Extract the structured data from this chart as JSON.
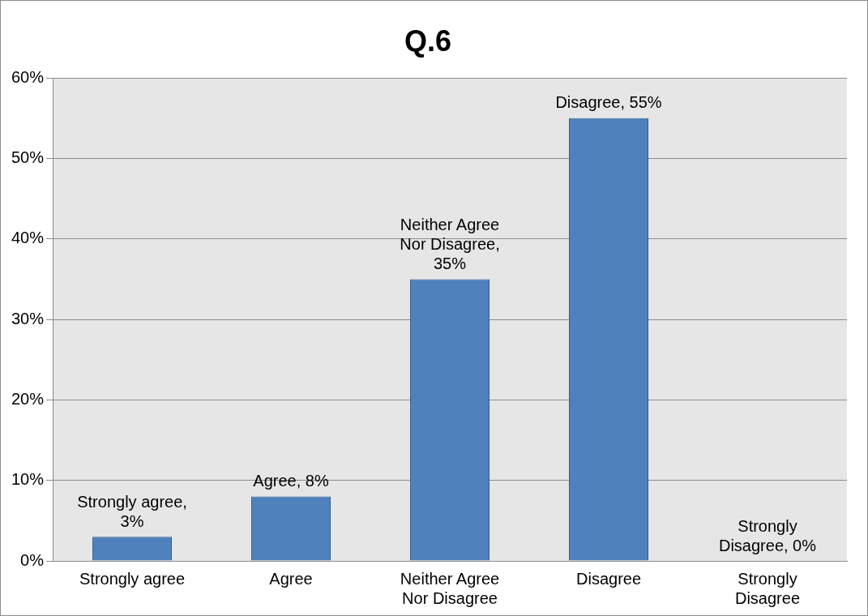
{
  "chart_data": {
    "type": "bar",
    "title": "Q.6",
    "categories": [
      "Strongly agree",
      "Agree",
      "Neither Agree Nor Disagree",
      "Disagree",
      "Strongly Disagree"
    ],
    "values": [
      3,
      8,
      35,
      55,
      0
    ],
    "value_labels": [
      "Strongly agree, 3%",
      "Agree, 8%",
      "Neither Agree Nor Disagree, 35%",
      "Disagree, 55%",
      "Strongly Disagree, 0%"
    ],
    "color": "#4f81bd",
    "ylim": [
      0,
      60
    ],
    "yticks": [
      {
        "value": 0,
        "label": "0%"
      },
      {
        "value": 10,
        "label": "10%"
      },
      {
        "value": 20,
        "label": "20%"
      },
      {
        "value": 30,
        "label": "30%"
      },
      {
        "value": 40,
        "label": "40%"
      },
      {
        "value": 50,
        "label": "50%"
      },
      {
        "value": 60,
        "label": "60%"
      }
    ],
    "grid": "y",
    "legend": false
  }
}
